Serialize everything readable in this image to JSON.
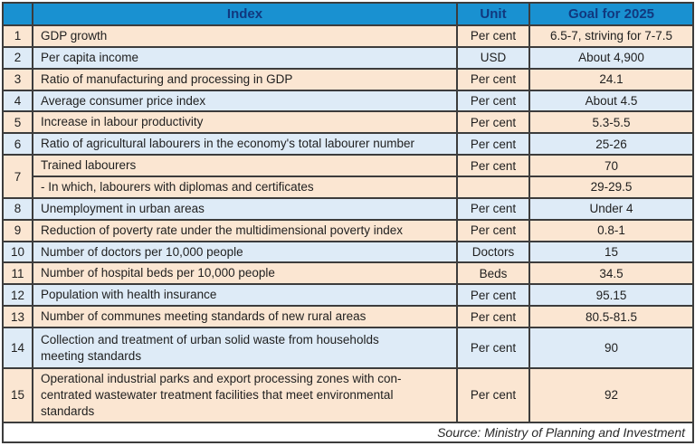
{
  "chart_data": {
    "type": "table",
    "header": {
      "no": "",
      "index": "Index",
      "unit": "Unit",
      "goal": "Goal for 2025"
    },
    "rows": [
      {
        "no": "1",
        "index": "GDP growth",
        "unit": "Per cent",
        "goal": "6.5-7, striving for 7-7.5"
      },
      {
        "no": "2",
        "index": "Per capita income",
        "unit": "USD",
        "goal": "About 4,900"
      },
      {
        "no": "3",
        "index": "Ratio of manufacturing and processing in GDP",
        "unit": "Per cent",
        "goal": "24.1"
      },
      {
        "no": "4",
        "index": "Average consumer price index",
        "unit": "Per cent",
        "goal": "About 4.5"
      },
      {
        "no": "5",
        "index": "Increase in labour productivity",
        "unit": "Per cent",
        "goal": "5.3-5.5"
      },
      {
        "no": "6",
        "index": "Ratio of agricultural labourers in the economy's total labourer number",
        "unit": "Per cent",
        "goal": "25-26"
      },
      {
        "no": "7",
        "index": "Trained labourers",
        "unit": "Per cent",
        "goal": "70"
      },
      {
        "no": "",
        "index": "- In which, labourers with diplomas and certificates",
        "unit": "",
        "goal": "29-29.5"
      },
      {
        "no": "8",
        "index": "Unemployment in urban areas",
        "unit": "Per cent",
        "goal": "Under 4"
      },
      {
        "no": "9",
        "index": "Reduction of poverty rate under the multidimensional poverty index",
        "unit": "Per cent",
        "goal": "0.8-1"
      },
      {
        "no": "10",
        "index": "Number of doctors per 10,000 people",
        "unit": "Doctors",
        "goal": "15"
      },
      {
        "no": "11",
        "index": "Number of hospital beds per 10,000 people",
        "unit": "Beds",
        "goal": "34.5"
      },
      {
        "no": "12",
        "index": "Population with health insurance",
        "unit": "Per cent",
        "goal": "95.15"
      },
      {
        "no": "13",
        "index": "Number of communes meeting standards of new rural areas",
        "unit": "Per cent",
        "goal": "80.5-81.5"
      },
      {
        "no": "14",
        "index": "Collection and treatment of urban solid waste from households\nmeeting standards",
        "unit": "Per cent",
        "goal": "90"
      },
      {
        "no": "15",
        "index": "Operational industrial parks and export processing zones with con-\ncentrated wastewater treatment facilities that meet environmental\nstandards",
        "unit": "Per cent",
        "goal": "92"
      }
    ],
    "source_note": "Source: Ministry of Planning and Investment"
  },
  "colors": {
    "header_bg": "#1991d1",
    "header_text": "#11387e",
    "row_peach_bg": "#fbe6d2",
    "row_blue_bg": "#deebf7",
    "inner_border": "#3c3c3c",
    "outer_border": "#1a1a1a",
    "body_text": "#1f1f1f",
    "source_bg": "#ffffff"
  }
}
